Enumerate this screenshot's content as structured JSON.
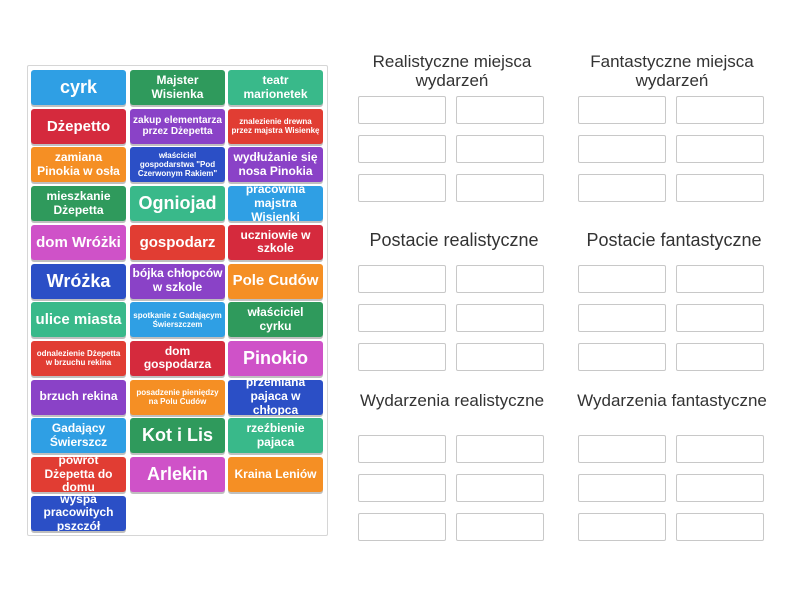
{
  "colors": {
    "blue": "#2f9fe4",
    "red": "#e13d33",
    "orange": "#f58f24",
    "green": "#2f9a5c",
    "teal": "#39b98a",
    "purple": "#8a42c7",
    "pink": "#cf52c8",
    "navy": "#2b4fc6",
    "crimson": "#d52a3d",
    "slot_border": "#c8c8c8",
    "title_text": "#333333"
  },
  "tiles": [
    {
      "label": "cyrk",
      "color": "blue"
    },
    {
      "label": "Majster Wisienka",
      "color": "green"
    },
    {
      "label": "teatr marionetek",
      "color": "teal"
    },
    {
      "label": "Dżepetto",
      "color": "crimson"
    },
    {
      "label": "zakup elementarza przez Dżepetta",
      "color": "purple"
    },
    {
      "label": "znalezienie drewna przez majstra Wisienkę",
      "color": "red"
    },
    {
      "label": "zamiana Pinokia w osła",
      "color": "orange"
    },
    {
      "label": "właściciel gospodarstwa \"Pod Czerwonym Rakiem\"",
      "color": "navy"
    },
    {
      "label": "wydłużanie się nosa Pinokia",
      "color": "purple"
    },
    {
      "label": "mieszkanie Dżepetta",
      "color": "green"
    },
    {
      "label": "Ogniojad",
      "color": "teal"
    },
    {
      "label": "pracownia majstra Wisienki",
      "color": "blue"
    },
    {
      "label": "dom Wróżki",
      "color": "pink"
    },
    {
      "label": "gospodarz",
      "color": "red"
    },
    {
      "label": "uczniowie w szkole",
      "color": "crimson"
    },
    {
      "label": "Wróżka",
      "color": "navy"
    },
    {
      "label": "bójka chłopców w szkole",
      "color": "purple"
    },
    {
      "label": "Pole Cudów",
      "color": "orange"
    },
    {
      "label": "ulice miasta",
      "color": "teal"
    },
    {
      "label": "spotkanie z Gadającym Świerszczem",
      "color": "blue"
    },
    {
      "label": "właściciel cyrku",
      "color": "green"
    },
    {
      "label": "odnalezienie Dżepetta w brzuchu rekina",
      "color": "red"
    },
    {
      "label": "dom gospodarza",
      "color": "crimson"
    },
    {
      "label": "Pinokio",
      "color": "pink"
    },
    {
      "label": "brzuch rekina",
      "color": "purple"
    },
    {
      "label": "posadzenie pieniędzy na Polu Cudów",
      "color": "orange"
    },
    {
      "label": "przemiana pajaca w chłopca",
      "color": "navy"
    },
    {
      "label": "Gadający Świerszcz",
      "color": "blue"
    },
    {
      "label": "Kot i Lis",
      "color": "green"
    },
    {
      "label": "rzeźbienie pajaca",
      "color": "teal"
    },
    {
      "label": "powrót Dżepetta do domu",
      "color": "red"
    },
    {
      "label": "Arlekin",
      "color": "pink"
    },
    {
      "label": "Kraina Leniów",
      "color": "orange"
    },
    {
      "label": "wyspa pracowitych pszczół",
      "color": "navy"
    }
  ],
  "groups": [
    {
      "title": "Realistyczne miejsca wydarzeń",
      "slots": 6
    },
    {
      "title": "Fantastyczne miejsca wydarzeń",
      "slots": 6
    },
    {
      "title": "Postacie realistyczne",
      "slots": 6
    },
    {
      "title": "Postacie fantastyczne",
      "slots": 6
    },
    {
      "title": "Wydarzenia realistyczne",
      "slots": 6
    },
    {
      "title": "Wydarzenia fantastyczne",
      "slots": 6
    }
  ]
}
